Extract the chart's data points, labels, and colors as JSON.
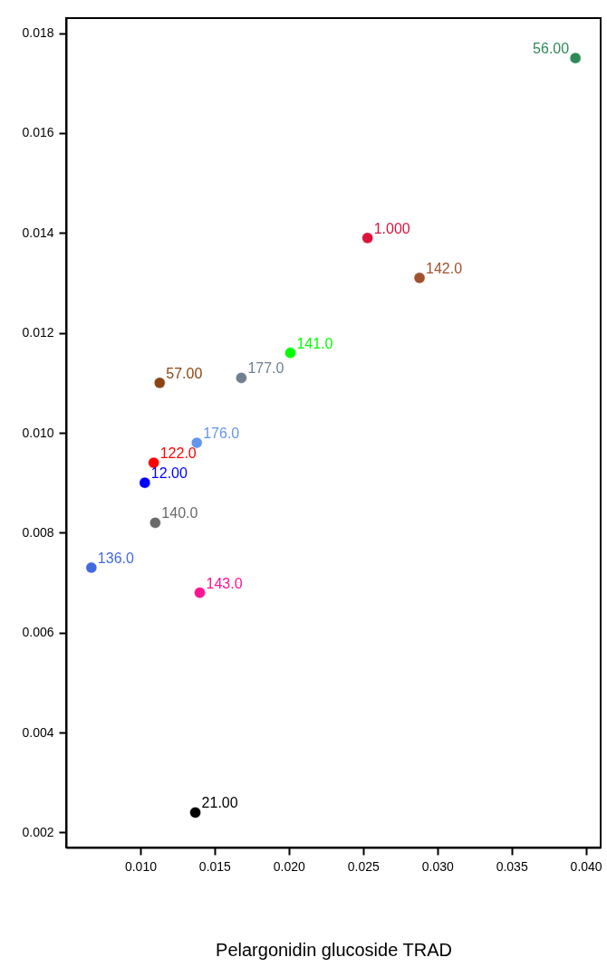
{
  "chart_data": {
    "type": "scatter",
    "xlabel": "Pelargonidin glucoside TRAD",
    "marker": "circle",
    "grid": false,
    "xlim": [
      0.005,
      0.041
    ],
    "ylim": [
      0.0017,
      0.0183
    ],
    "xticks": [
      {
        "value": 0.01,
        "label": "0.010"
      },
      0.015,
      {
        "value": 0.02,
        "label": "0.020"
      },
      0.025,
      {
        "value": 0.03,
        "label": "0.030"
      },
      0.035,
      {
        "value": 0.04,
        "label": "0.040"
      }
    ],
    "yticks": [
      0.002,
      0.004,
      0.006,
      0.008,
      {
        "value": 0.01,
        "label": "0.010"
      },
      0.012,
      0.014,
      0.016,
      0.018
    ],
    "series": [
      {
        "name": "56.00",
        "color": "#2e8b57",
        "x": [
          0.0393
        ],
        "values": [
          0.0175
        ]
      },
      {
        "name": "1.000",
        "color": "#dc143c",
        "x": [
          0.0253
        ],
        "values": [
          0.0139
        ]
      },
      {
        "name": "142.0",
        "color": "#a0522d",
        "x": [
          0.0288
        ],
        "values": [
          0.0131
        ]
      },
      {
        "name": "141.0",
        "color": "#00ff00",
        "x": [
          0.0201
        ],
        "values": [
          0.0116
        ]
      },
      {
        "name": "177.0",
        "color": "#708090",
        "x": [
          0.0168
        ],
        "values": [
          0.0111
        ]
      },
      {
        "name": "57.00",
        "color": "#8b4513",
        "x": [
          0.0113
        ],
        "values": [
          0.011
        ]
      },
      {
        "name": "176.0",
        "color": "#6495ed",
        "x": [
          0.0138
        ],
        "values": [
          0.0098
        ]
      },
      {
        "name": "122.0",
        "color": "#ff0000",
        "x": [
          0.0109
        ],
        "values": [
          0.0094
        ]
      },
      {
        "name": "12.00",
        "color": "#0000ff",
        "x": [
          0.0103
        ],
        "values": [
          0.009
        ]
      },
      {
        "name": "140.0",
        "color": "#696969",
        "x": [
          0.011
        ],
        "values": [
          0.0082
        ]
      },
      {
        "name": "136.0",
        "color": "#4169e1",
        "x": [
          0.0067
        ],
        "values": [
          0.0073
        ]
      },
      {
        "name": "143.0",
        "color": "#ff1493",
        "x": [
          0.014
        ],
        "values": [
          0.0068
        ]
      },
      {
        "name": "21.00",
        "color": "#000000",
        "x": [
          0.0137
        ],
        "values": [
          0.0024
        ]
      }
    ]
  }
}
